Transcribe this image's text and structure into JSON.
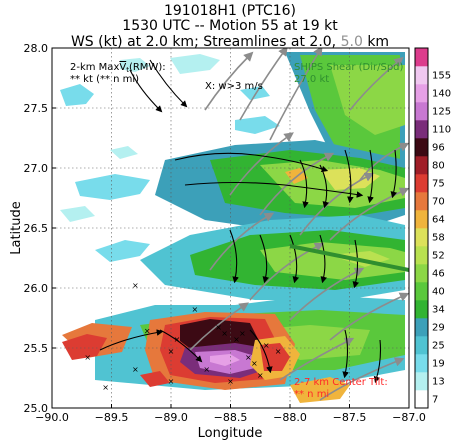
{
  "chart_data": {
    "type": "heatmap",
    "title_lines": [
      "191018H1 (PTC16)",
      "1530 UTC -- Motion 55 at 19 kt"
    ],
    "title_line3_main": "WS (kt) at 2.0 km; Streamlines at 2.0,",
    "title_line3_alt": "5.0",
    "title_line3_unit": "km",
    "xlabel": "Longitude",
    "ylabel": "Latitude",
    "xlim": [
      -90.0,
      -87.0
    ],
    "ylim": [
      25.0,
      28.0
    ],
    "xticks": [
      -90.0,
      -89.5,
      -89.0,
      -88.5,
      -88.0,
      -87.5,
      -87.0
    ],
    "xtick_labels": [
      "−90.0",
      "−89.5",
      "−89.0",
      "−88.5",
      "−88.0",
      "−87.5",
      "−87.0"
    ],
    "yticks": [
      25.0,
      25.5,
      26.0,
      26.5,
      27.0,
      27.5,
      28.0
    ],
    "ytick_labels": [
      "25.0",
      "25.5",
      "26.0",
      "26.5",
      "27.0",
      "27.5",
      "28.0"
    ],
    "grid": true,
    "colorbar": {
      "levels": [
        7,
        13,
        19,
        25,
        29,
        34,
        40,
        46,
        52,
        58,
        64,
        70,
        75,
        80,
        96,
        110,
        125,
        140,
        155
      ],
      "labels": [
        "7",
        "13",
        "19",
        "25",
        "29",
        "34",
        "40",
        "46",
        "52",
        "58",
        "64",
        "70",
        "75",
        "80",
        "96",
        "110",
        "125",
        "140",
        "155"
      ],
      "colors": [
        "#ffffff",
        "#b4f0f0",
        "#78dceb",
        "#50c3d2",
        "#3ca0b9",
        "#32b432",
        "#5ac83c",
        "#8cd746",
        "#b9e150",
        "#dce15a",
        "#f0b43c",
        "#e6783c",
        "#dc3c32",
        "#a01e28",
        "#3c0a14",
        "#7a2d7a",
        "#c878d2",
        "#e6a0e6",
        "#f0c8f0",
        "#dc3c8c"
      ]
    },
    "annotations": {
      "max_wind_line1": "2-km Max",
      "max_wind_v": "V",
      "max_wind_sub": "t",
      "max_wind_rmw": "(RMW):",
      "max_wind_line2": "** kt (** n mi)",
      "vertical_velocity": "X: w>3 m/s",
      "ships_shear_line1": "SHIPS Shear (Dir/Spd)",
      "ships_shear_line2": "27.0 kt",
      "center_tilt_line1": "2-7 km Center Tilt:",
      "center_tilt_line2": "** n mi"
    },
    "shear_vector": {
      "from": [
        -88.0,
        26.35
      ],
      "to": [
        -87.0,
        26.15
      ]
    },
    "colors": {
      "shear": "#2f8f2f",
      "tilt": "#ff0000",
      "streamline_low": "#000000",
      "streamline_high": "#8c8c8c"
    }
  }
}
